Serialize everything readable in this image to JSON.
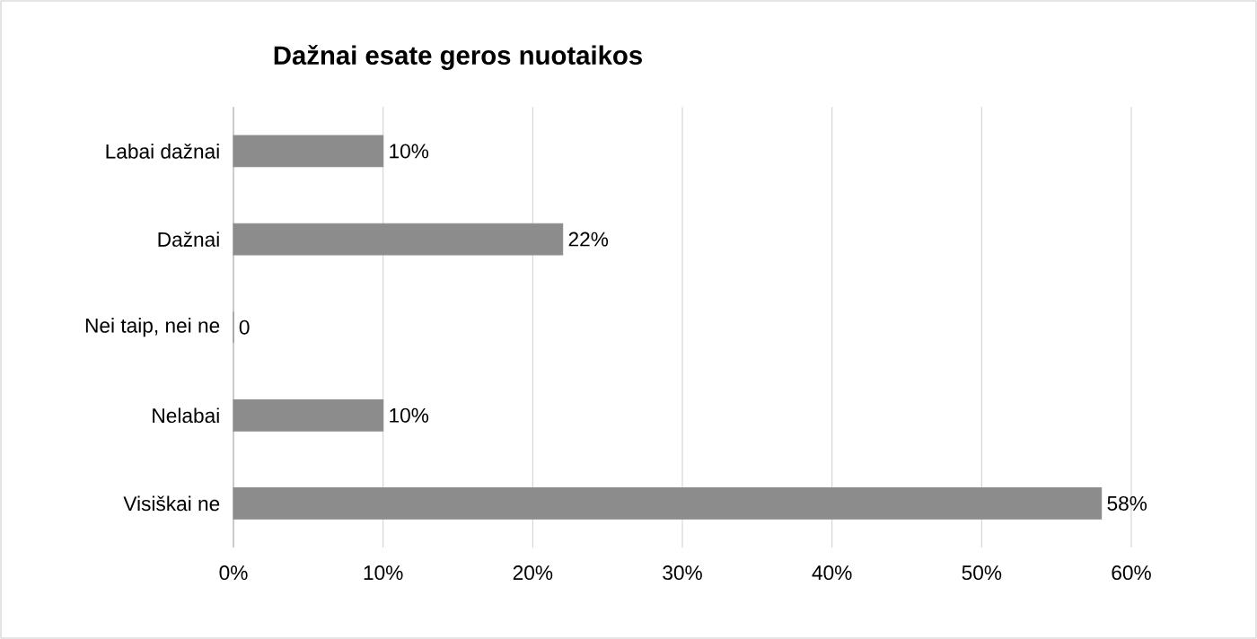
{
  "chart_data": {
    "type": "bar",
    "orientation": "horizontal",
    "title": "Dažnai esate geros nuotaikos",
    "categories": [
      "Labai dažnai",
      "Dažnai",
      "Nei taip, nei ne",
      "Nelabai",
      "Visiškai ne"
    ],
    "values": [
      10,
      22,
      0,
      10,
      58
    ],
    "value_labels": [
      "10%",
      "22%",
      "0",
      "10%",
      "58%"
    ],
    "color": "#8c8c8c",
    "xlim": [
      0,
      60
    ],
    "xticks": [
      {
        "value": 0,
        "label": "0%"
      },
      {
        "value": 10,
        "label": "10%"
      },
      {
        "value": 20,
        "label": "20%"
      },
      {
        "value": 30,
        "label": "30%"
      },
      {
        "value": 40,
        "label": "40%"
      },
      {
        "value": 50,
        "label": "50%"
      },
      {
        "value": 60,
        "label": "60%"
      }
    ],
    "grid": "x"
  }
}
